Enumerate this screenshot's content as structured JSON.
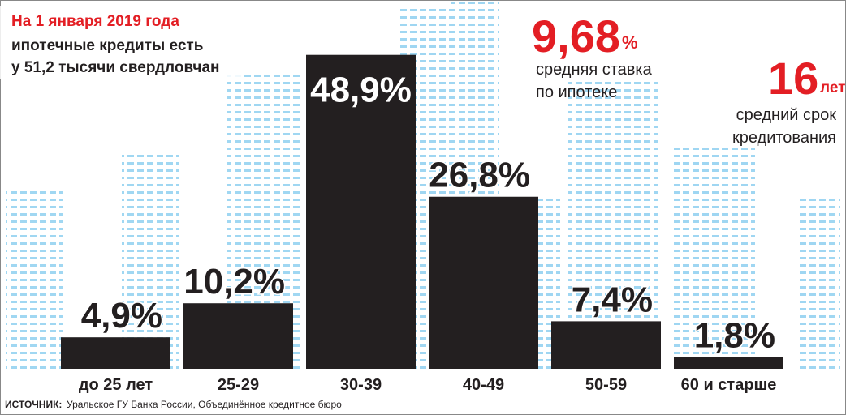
{
  "title_lines": [
    "На 1 января 2019 года",
    "ипотечные кредиты есть",
    "у 51,2 тысячи свердловчан"
  ],
  "annotations": [
    {
      "number": "9,68",
      "unit": "%",
      "lines": [
        "средняя ставка",
        "по ипотеке"
      ]
    },
    {
      "number": "16",
      "unit": "лет",
      "lines": [
        "средний срок",
        "кредитования"
      ]
    }
  ],
  "chart_data": {
    "type": "bar",
    "categories": [
      "до 25 лет",
      "25-29",
      "30-39",
      "40-49",
      "50-59",
      "60 и старше"
    ],
    "values": [
      4.9,
      10.2,
      48.9,
      26.8,
      7.4,
      1.8
    ],
    "value_labels": [
      "4,9%",
      "10,2%",
      "48,9%",
      "26,8%",
      "7,4%",
      "1,8%"
    ],
    "color": "#231f20",
    "ylim": [
      0,
      50
    ]
  },
  "source": {
    "label": "ИСТОЧНИК:",
    "text": "Уральское ГУ Банка России, Объединённое кредитное бюро"
  }
}
